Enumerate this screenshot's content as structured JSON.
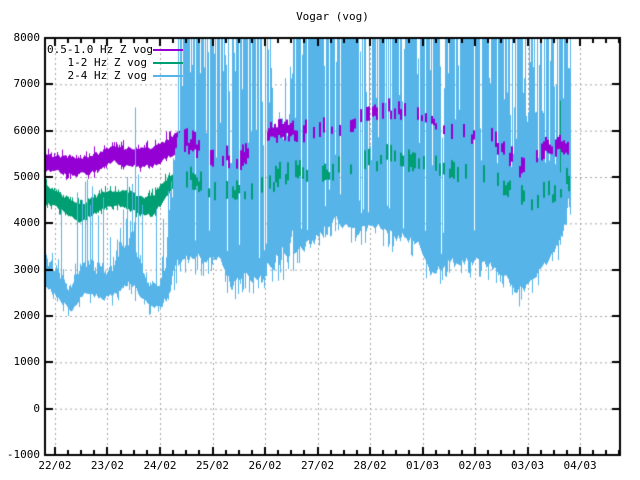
{
  "title": "Vogar (vog)",
  "chart_data": {
    "type": "line",
    "title": "Vogar (vog)",
    "station": "vog",
    "grid": {
      "show": true,
      "color": "#A9A9A9",
      "dash": [
        2,
        3
      ]
    },
    "x_axis": {
      "start_day": -0.19,
      "end_day": 10.76,
      "tick_days": [
        0,
        1,
        2,
        3,
        4,
        5,
        6,
        7,
        8,
        9,
        10
      ],
      "tick_labels": [
        "22/02",
        "23/02",
        "24/02",
        "25/02",
        "26/02",
        "27/02",
        "28/02",
        "01/03",
        "02/03",
        "03/03",
        "04/03"
      ],
      "minor_tick_step_days": 0.25
    },
    "y_axis": {
      "min": -1000,
      "max": 8000,
      "tick_values": [
        -1000,
        0,
        1000,
        2000,
        3000,
        4000,
        5000,
        6000,
        7000,
        8000
      ]
    },
    "legend": {
      "position": "top-left",
      "entries": [
        "0.5-1.0 Hz Z vog",
        "1-2 Hz Z vog",
        "2-4 Hz Z vog"
      ]
    },
    "series": [
      {
        "name": "0.5-1.0 Hz Z vog",
        "color": "#9400D3",
        "band_end_day": 2.45,
        "data_end_day": 9.81,
        "envelope": [
          [
            -0.19,
            5050,
            5600
          ],
          [
            0.2,
            4980,
            5500
          ],
          [
            0.5,
            4950,
            5500
          ],
          [
            0.8,
            5050,
            5600
          ],
          [
            1.1,
            5250,
            5780
          ],
          [
            1.35,
            5150,
            5700
          ],
          [
            1.6,
            5100,
            5650
          ],
          [
            1.85,
            5150,
            5720
          ],
          [
            2.1,
            5300,
            5850
          ],
          [
            2.35,
            5500,
            6050
          ],
          [
            2.6,
            5450,
            5950
          ],
          [
            3.0,
            5150,
            5650
          ],
          [
            3.4,
            5100,
            5600
          ],
          [
            3.8,
            5250,
            5750
          ],
          [
            4.1,
            5650,
            6150
          ],
          [
            4.3,
            5750,
            6200
          ],
          [
            4.55,
            5700,
            6150
          ],
          [
            4.9,
            5750,
            6200
          ],
          [
            5.3,
            5850,
            6250
          ],
          [
            5.7,
            5950,
            6350
          ],
          [
            6.0,
            6100,
            6500
          ],
          [
            6.3,
            6250,
            6650
          ],
          [
            6.6,
            6200,
            6550
          ],
          [
            6.9,
            6150,
            6450
          ],
          [
            7.2,
            6050,
            6350
          ],
          [
            7.5,
            5800,
            6150
          ],
          [
            7.9,
            5700,
            6050
          ],
          [
            8.3,
            5600,
            6000
          ],
          [
            8.6,
            5250,
            5700
          ],
          [
            8.9,
            4900,
            5350
          ],
          [
            9.1,
            5000,
            5400
          ],
          [
            9.3,
            5400,
            5800
          ],
          [
            9.6,
            5450,
            5850
          ],
          [
            9.81,
            5500,
            5900
          ]
        ],
        "overlay_segments": [
          [
            2.45,
            2.75,
            0.85
          ],
          [
            2.75,
            3.6,
            0.45
          ],
          [
            3.6,
            4.05,
            0.3
          ],
          [
            4.05,
            4.6,
            0.9
          ],
          [
            4.6,
            5.5,
            0.35
          ],
          [
            5.5,
            6.7,
            0.5
          ],
          [
            6.7,
            7.3,
            0.35
          ],
          [
            7.3,
            8.3,
            0.28
          ],
          [
            8.3,
            9.0,
            0.5
          ],
          [
            9.0,
            9.25,
            0.3
          ],
          [
            9.25,
            9.81,
            0.95
          ]
        ],
        "spikes": []
      },
      {
        "name": "1-2 Hz Z vog",
        "color": "#009E73",
        "band_end_day": 2.45,
        "data_end_day": 9.81,
        "envelope": [
          [
            -0.19,
            4350,
            4900
          ],
          [
            0.2,
            4150,
            4650
          ],
          [
            0.45,
            3980,
            4500
          ],
          [
            0.7,
            4100,
            4600
          ],
          [
            1.0,
            4250,
            4750
          ],
          [
            1.3,
            4300,
            4800
          ],
          [
            1.6,
            4150,
            4700
          ],
          [
            1.85,
            4080,
            4650
          ],
          [
            2.1,
            4450,
            5000
          ],
          [
            2.35,
            4800,
            5300
          ],
          [
            2.6,
            4700,
            5200
          ],
          [
            3.0,
            4500,
            4950
          ],
          [
            3.5,
            4450,
            4900
          ],
          [
            4.0,
            4550,
            5000
          ],
          [
            4.3,
            4750,
            5300
          ],
          [
            4.6,
            4800,
            5300
          ],
          [
            5.2,
            4900,
            5350
          ],
          [
            5.8,
            5000,
            5500
          ],
          [
            6.3,
            5100,
            5650
          ],
          [
            6.8,
            5050,
            5550
          ],
          [
            7.3,
            4950,
            5400
          ],
          [
            7.8,
            4850,
            5300
          ],
          [
            8.3,
            4700,
            5150
          ],
          [
            8.7,
            4500,
            4950
          ],
          [
            9.1,
            4250,
            4750
          ],
          [
            9.45,
            4400,
            4900
          ],
          [
            9.81,
            4700,
            5200
          ]
        ],
        "overlay_segments": [
          [
            2.45,
            2.75,
            0.7
          ],
          [
            2.75,
            3.6,
            0.3
          ],
          [
            3.6,
            4.1,
            0.25
          ],
          [
            4.1,
            4.7,
            0.5
          ],
          [
            4.7,
            6.1,
            0.3
          ],
          [
            6.1,
            7.0,
            0.4
          ],
          [
            7.0,
            8.4,
            0.25
          ],
          [
            8.4,
            9.3,
            0.4
          ],
          [
            9.3,
            9.81,
            0.45
          ]
        ],
        "spikes": [
          [
            9.62,
            5100,
            6650
          ]
        ]
      },
      {
        "name": "2-4 Hz Z vog",
        "color": "#56B4E9",
        "band_end_day": 9.81,
        "data_end_day": 9.81,
        "clip_max": 8000,
        "envelope": [
          [
            -0.19,
            2600,
            3500,
            0
          ],
          [
            0.1,
            2250,
            3000,
            0
          ],
          [
            0.3,
            2080,
            2800,
            0
          ],
          [
            0.55,
            2350,
            3400,
            0
          ],
          [
            0.7,
            2400,
            3300,
            0
          ],
          [
            1.0,
            2300,
            3150,
            0
          ],
          [
            1.25,
            2500,
            3650,
            0
          ],
          [
            1.45,
            2600,
            4100,
            0
          ],
          [
            1.6,
            2400,
            3500,
            0
          ],
          [
            1.75,
            2200,
            2900,
            0
          ],
          [
            1.95,
            2120,
            2850,
            0
          ],
          [
            2.1,
            2250,
            3400,
            0
          ],
          [
            2.22,
            2450,
            5200,
            0.1
          ],
          [
            2.35,
            3000,
            8300,
            0.9
          ],
          [
            2.6,
            3150,
            8300,
            0.85
          ],
          [
            2.85,
            3100,
            8300,
            0.7
          ],
          [
            3.1,
            3150,
            8300,
            0.55
          ],
          [
            3.35,
            2550,
            8300,
            0.5
          ],
          [
            3.6,
            2750,
            8300,
            0.7
          ],
          [
            3.85,
            2700,
            8300,
            0.8
          ],
          [
            4.0,
            2750,
            8300,
            0.6
          ],
          [
            4.15,
            2800,
            7000,
            0.3
          ],
          [
            4.4,
            2900,
            7000,
            0.35
          ],
          [
            4.55,
            3200,
            8300,
            0.9
          ],
          [
            4.9,
            3500,
            8300,
            0.95
          ],
          [
            5.3,
            4000,
            8300,
            0.9
          ],
          [
            5.7,
            3700,
            8300,
            0.85
          ],
          [
            6.1,
            3800,
            8300,
            0.8
          ],
          [
            6.5,
            3600,
            8300,
            0.8
          ],
          [
            6.9,
            3500,
            8300,
            0.75
          ],
          [
            7.15,
            2850,
            8300,
            0.7
          ],
          [
            7.45,
            3000,
            8300,
            0.7
          ],
          [
            7.8,
            3100,
            8300,
            0.75
          ],
          [
            8.2,
            3000,
            8300,
            0.8
          ],
          [
            8.55,
            2750,
            8300,
            0.8
          ],
          [
            8.8,
            2400,
            8300,
            0.75
          ],
          [
            9.05,
            2600,
            8300,
            0.7
          ],
          [
            9.3,
            2950,
            8300,
            0.65
          ],
          [
            9.55,
            3350,
            8300,
            0.6
          ],
          [
            9.7,
            3800,
            8300,
            0.7
          ],
          [
            9.81,
            4100,
            7600,
            0.5
          ]
        ],
        "overlay_segments": [],
        "spikes": [
          [
            0.52,
            2700,
            4500
          ],
          [
            0.57,
            2750,
            4900
          ],
          [
            0.61,
            2750,
            4950
          ],
          [
            0.66,
            2700,
            4400
          ],
          [
            0.71,
            2650,
            4800
          ],
          [
            1.05,
            2500,
            3700
          ],
          [
            1.18,
            2550,
            3650
          ],
          [
            1.3,
            2600,
            4300
          ],
          [
            1.38,
            2650,
            5000
          ],
          [
            1.46,
            2650,
            4850
          ],
          [
            1.52,
            2600,
            6500
          ],
          [
            1.58,
            2500,
            5050
          ],
          [
            1.66,
            2450,
            4400
          ],
          [
            2.05,
            2300,
            4100
          ],
          [
            2.15,
            2350,
            4700
          ]
        ]
      }
    ]
  }
}
